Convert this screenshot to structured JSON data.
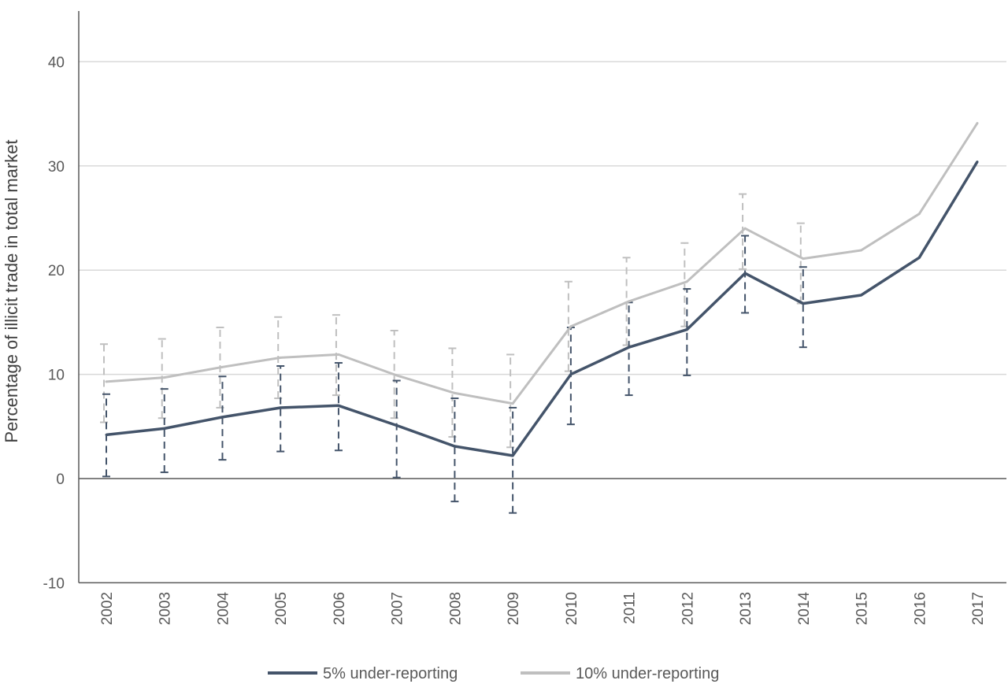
{
  "chart_data": {
    "type": "line",
    "title": "",
    "xlabel": "",
    "ylabel": "Percentage of illicit trade in total market",
    "ylim": [
      -10,
      45
    ],
    "yticks": [
      -10,
      0,
      10,
      20,
      30,
      40
    ],
    "grid": true,
    "legend_position": "bottom",
    "categories": [
      "2002",
      "2003",
      "2004",
      "2005",
      "2006",
      "2007",
      "2008",
      "2009",
      "2010",
      "2011",
      "2012",
      "2013",
      "2014",
      "2015",
      "2016",
      "2017"
    ],
    "series": [
      {
        "name": "5% under-reporting",
        "color": "#44546a",
        "values": [
          4.2,
          4.8,
          5.9,
          6.8,
          7.0,
          5.1,
          3.1,
          2.2,
          10.0,
          12.6,
          14.3,
          19.7,
          16.8,
          17.6,
          21.2,
          30.4
        ],
        "error_low": [
          0.2,
          0.6,
          1.8,
          2.6,
          2.7,
          0.1,
          -2.2,
          -3.3,
          5.2,
          8.0,
          9.9,
          15.9,
          12.6,
          null,
          null,
          null
        ],
        "error_high": [
          8.1,
          8.6,
          9.8,
          10.8,
          11.1,
          9.4,
          7.7,
          6.8,
          14.5,
          16.9,
          18.2,
          23.3,
          20.3,
          null,
          null,
          null
        ]
      },
      {
        "name": "10% under-reporting",
        "color": "#bfbfbf",
        "values": [
          9.3,
          9.7,
          10.7,
          11.6,
          11.9,
          9.9,
          8.2,
          7.2,
          14.6,
          17.0,
          18.9,
          24.0,
          21.1,
          21.9,
          25.4,
          34.1
        ],
        "error_low": [
          5.4,
          5.8,
          6.8,
          7.7,
          8.0,
          5.8,
          4.0,
          3.0,
          10.3,
          12.8,
          14.6,
          20.1,
          16.8,
          null,
          null,
          null
        ],
        "error_high": [
          12.9,
          13.4,
          14.5,
          15.5,
          15.7,
          14.2,
          12.5,
          11.9,
          18.9,
          21.2,
          22.6,
          27.3,
          24.5,
          null,
          null,
          null
        ]
      }
    ]
  }
}
